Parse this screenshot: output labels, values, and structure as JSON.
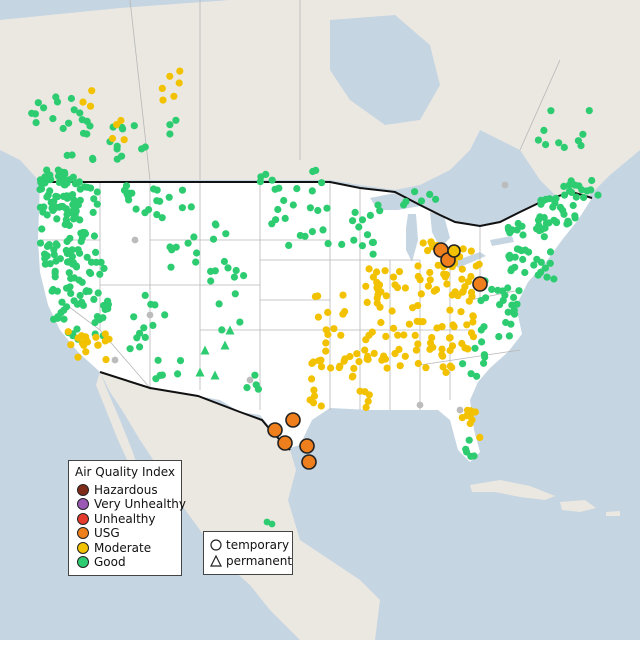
{
  "legend": {
    "title": "Air Quality Index",
    "items": [
      {
        "label": "Hazardous",
        "color": "#7e2b1a"
      },
      {
        "label": "Very Unhealthy",
        "color": "#9b59b6"
      },
      {
        "label": "Unhealthy",
        "color": "#e53b2c"
      },
      {
        "label": "USG",
        "color": "#ee7f1c"
      },
      {
        "label": "Moderate",
        "color": "#f2c200"
      },
      {
        "label": "Good",
        "color": "#2ecc71"
      }
    ]
  },
  "site_types": [
    {
      "label": "temporary",
      "symbol": "circle"
    },
    {
      "label": "permanent",
      "symbol": "triangle"
    }
  ],
  "colors": {
    "water": "#c6d5e2",
    "land": "#ebe8e2",
    "land_us": "#ffffff",
    "border": "#111111",
    "state_line": "#b7b7b7",
    "no_data": "#bcbcbc"
  }
}
